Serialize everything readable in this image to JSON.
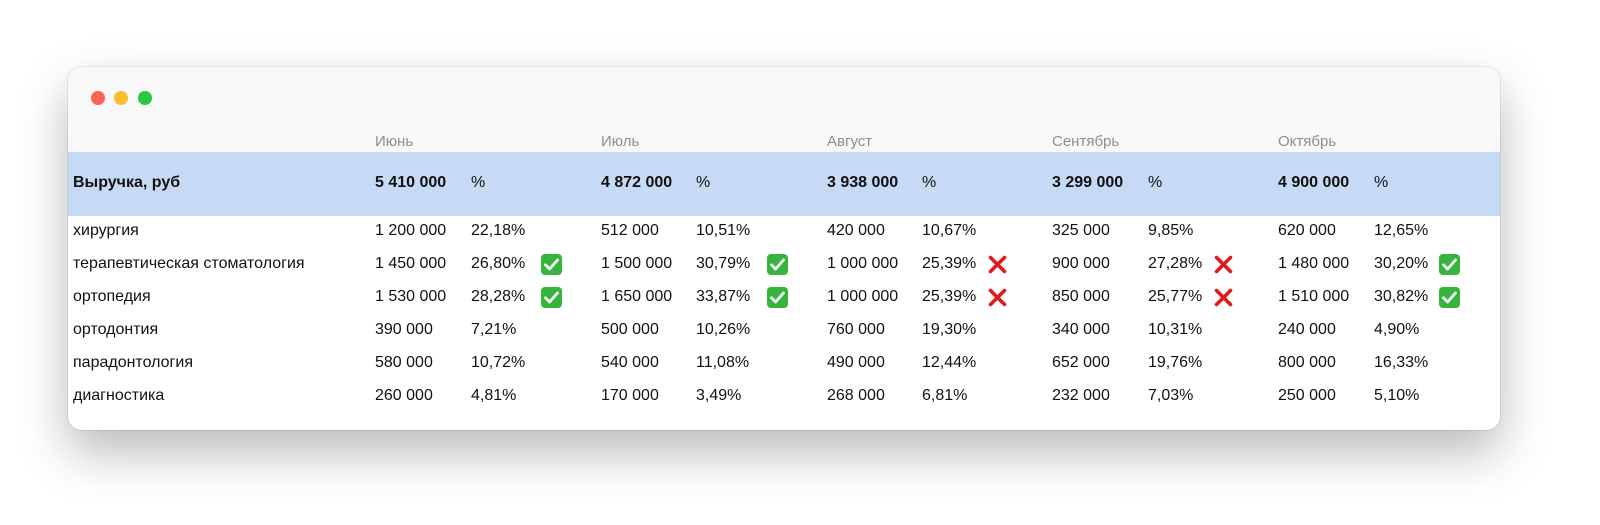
{
  "window": {
    "controls": [
      "close",
      "minimize",
      "maximize"
    ]
  },
  "table": {
    "months": [
      "Июнь",
      "Июль",
      "Август",
      "Сентябрь",
      "Октябрь"
    ],
    "revenue": {
      "label": "Выручка, руб",
      "values": [
        "5 410 000",
        "4 872 000",
        "3 938 000",
        "3 299 000",
        "4 900 000"
      ],
      "pct_label": "%"
    },
    "rows": [
      {
        "label": "хирургия",
        "cells": [
          {
            "value": "1 200 000",
            "pct": "22,18%",
            "mark": ""
          },
          {
            "value": "512 000",
            "pct": "10,51%",
            "mark": ""
          },
          {
            "value": "420 000",
            "pct": "10,67%",
            "mark": ""
          },
          {
            "value": "325 000",
            "pct": "9,85%",
            "mark": ""
          },
          {
            "value": "620 000",
            "pct": "12,65%",
            "mark": ""
          }
        ]
      },
      {
        "label": "терапевтическая стоматология",
        "cells": [
          {
            "value": "1 450 000",
            "pct": "26,80%",
            "mark": "check"
          },
          {
            "value": "1 500 000",
            "pct": "30,79%",
            "mark": "check"
          },
          {
            "value": "1 000 000",
            "pct": "25,39%",
            "mark": "cross"
          },
          {
            "value": "900 000",
            "pct": "27,28%",
            "mark": "cross"
          },
          {
            "value": "1 480 000",
            "pct": "30,20%",
            "mark": "check"
          }
        ]
      },
      {
        "label": "ортопедия",
        "cells": [
          {
            "value": "1 530 000",
            "pct": "28,28%",
            "mark": "check"
          },
          {
            "value": "1 650 000",
            "pct": "33,87%",
            "mark": "check"
          },
          {
            "value": "1 000 000",
            "pct": "25,39%",
            "mark": "cross"
          },
          {
            "value": "850 000",
            "pct": "25,77%",
            "mark": "cross"
          },
          {
            "value": "1 510 000",
            "pct": "30,82%",
            "mark": "check"
          }
        ]
      },
      {
        "label": "ортодонтия",
        "cells": [
          {
            "value": "390 000",
            "pct": "7,21%",
            "mark": ""
          },
          {
            "value": "500 000",
            "pct": "10,26%",
            "mark": ""
          },
          {
            "value": "760 000",
            "pct": "19,30%",
            "mark": ""
          },
          {
            "value": "340 000",
            "pct": "10,31%",
            "mark": ""
          },
          {
            "value": "240 000",
            "pct": "4,90%",
            "mark": ""
          }
        ]
      },
      {
        "label": "парадонтология",
        "cells": [
          {
            "value": "580 000",
            "pct": "10,72%",
            "mark": ""
          },
          {
            "value": "540 000",
            "pct": "11,08%",
            "mark": ""
          },
          {
            "value": "490 000",
            "pct": "12,44%",
            "mark": ""
          },
          {
            "value": "652 000",
            "pct": "19,76%",
            "mark": ""
          },
          {
            "value": "800 000",
            "pct": "16,33%",
            "mark": ""
          }
        ]
      },
      {
        "label": "диагностика",
        "cells": [
          {
            "value": "260 000",
            "pct": "4,81%",
            "mark": ""
          },
          {
            "value": "170 000",
            "pct": "3,49%",
            "mark": ""
          },
          {
            "value": "268 000",
            "pct": "6,81%",
            "mark": ""
          },
          {
            "value": "232 000",
            "pct": "7,03%",
            "mark": ""
          },
          {
            "value": "250 000",
            "pct": "5,10%",
            "mark": ""
          }
        ]
      }
    ]
  },
  "colors": {
    "header_band": "#c7daf5",
    "check": "#35b53b",
    "cross": "#e01a1a"
  }
}
